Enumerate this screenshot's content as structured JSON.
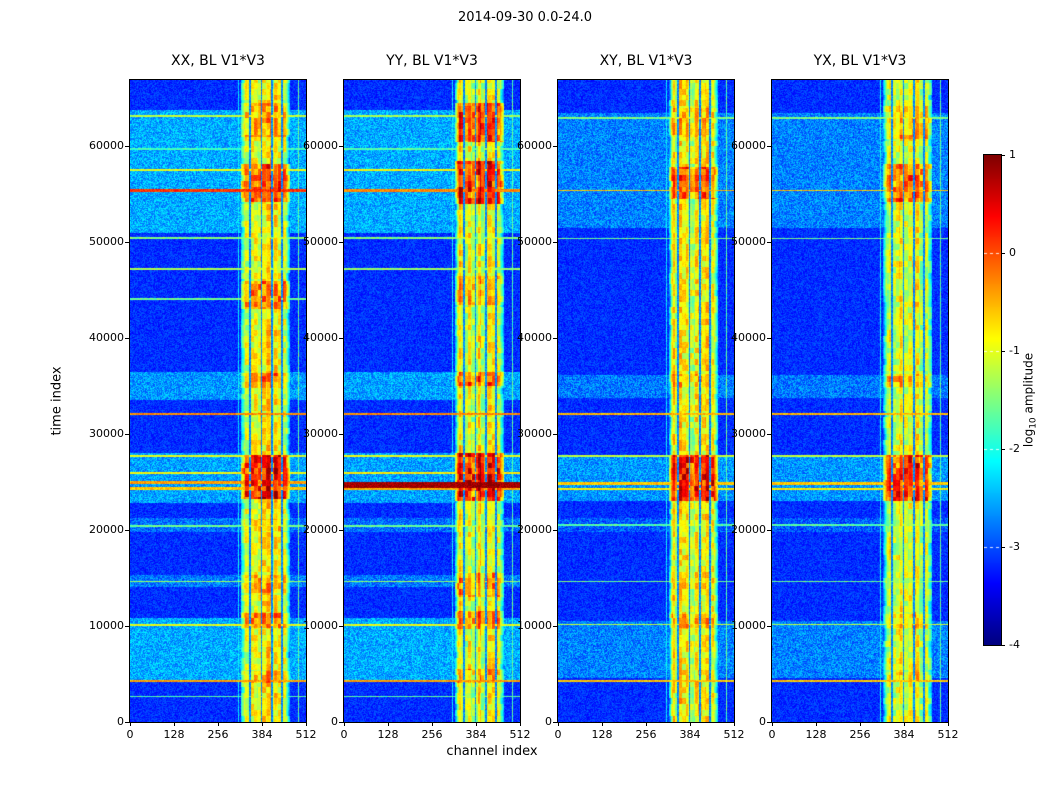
{
  "figure": {
    "title": "2014-09-30 0.0-24.0",
    "xlabel": "channel index",
    "ylabel": "time index",
    "colorbar_label_pre": "log",
    "colorbar_label_sub": "10",
    "colorbar_label_post": " amplitude"
  },
  "chart_data": {
    "type": "heatmap",
    "x_range": [
      0,
      512
    ],
    "y_range": [
      0,
      66875
    ],
    "x_ticks": [
      0,
      128,
      256,
      384,
      512
    ],
    "y_ticks": [
      0,
      10000,
      20000,
      30000,
      40000,
      50000,
      60000
    ],
    "colorbar": {
      "range": [
        -4,
        1
      ],
      "ticks": [
        1,
        0,
        -1,
        -2,
        -3,
        -4
      ],
      "colormap": "jet",
      "dashed_tick_values": [
        0,
        -1,
        -2,
        -3
      ]
    },
    "background": {
      "base": -3.15,
      "noise": 0.5
    },
    "band": {
      "start": 322,
      "end": 468,
      "base": -1.0,
      "taper": 14,
      "notches": [
        {
          "c": 349,
          "w": 3
        },
        {
          "c": 384,
          "w": 2
        },
        {
          "c": 414,
          "w": 3
        },
        {
          "c": 443,
          "w": 2
        }
      ]
    },
    "vlines": [
      {
        "c": 492,
        "w": 2,
        "v": -1.7
      },
      {
        "c": 316,
        "w": 1,
        "v": -2.2
      }
    ],
    "panels": [
      {
        "id": "xx",
        "title": "XX, BL V1*V3",
        "seed": 1,
        "stripes": [
          [
            51000,
            63800,
            0.55
          ],
          [
            33500,
            36500,
            0.45
          ],
          [
            22800,
            28000,
            0.5
          ],
          [
            4300,
            10800,
            0.55
          ],
          [
            14000,
            15300,
            0.3
          ],
          [
            19800,
            21200,
            0.25
          ]
        ],
        "clusters": [
          [
            23200,
            27800,
            1.6
          ],
          [
            54200,
            58200,
            1.2
          ],
          [
            43000,
            46000,
            0.85
          ],
          [
            34800,
            36400,
            0.7
          ],
          [
            9800,
            11300,
            0.8
          ],
          [
            13400,
            15300,
            0.5
          ],
          [
            61000,
            64500,
            0.6
          ],
          [
            4000,
            5300,
            0.5
          ],
          [
            19900,
            21100,
            0.4
          ]
        ],
        "hlines": [
          [
            63200,
            120,
            -1.2
          ],
          [
            59700,
            90,
            -1.8
          ],
          [
            57500,
            100,
            -1.0
          ],
          [
            55400,
            120,
            0.1
          ],
          [
            50400,
            100,
            -1.5
          ],
          [
            47200,
            90,
            -1.3
          ],
          [
            44100,
            80,
            -1.6
          ],
          [
            32100,
            110,
            -0.3
          ],
          [
            27700,
            90,
            -1.0
          ],
          [
            25900,
            100,
            -0.9
          ],
          [
            24900,
            150,
            -0.4
          ],
          [
            24300,
            120,
            -0.6
          ],
          [
            20400,
            90,
            -1.6
          ],
          [
            14600,
            80,
            -1.4
          ],
          [
            10100,
            90,
            -1.0
          ],
          [
            4200,
            100,
            -0.4
          ],
          [
            2600,
            80,
            -1.7
          ]
        ]
      },
      {
        "id": "yy",
        "title": "YY, BL V1*V3",
        "seed": 2,
        "stripes": [
          [
            51000,
            63800,
            0.55
          ],
          [
            33500,
            36500,
            0.5
          ],
          [
            22800,
            28000,
            0.5
          ],
          [
            4300,
            10800,
            0.55
          ],
          [
            14000,
            15300,
            0.3
          ],
          [
            19800,
            21200,
            0.25
          ]
        ],
        "clusters": [
          [
            23000,
            28000,
            1.7
          ],
          [
            54000,
            58500,
            1.5
          ],
          [
            60500,
            64500,
            1.3
          ],
          [
            43500,
            46500,
            0.6
          ],
          [
            35000,
            36500,
            1.0
          ],
          [
            9700,
            11500,
            0.9
          ],
          [
            13000,
            15500,
            0.7
          ],
          [
            4000,
            5500,
            0.7
          ]
        ],
        "hlines": [
          [
            63200,
            110,
            -1.3
          ],
          [
            59700,
            90,
            -1.7
          ],
          [
            57500,
            100,
            -0.9
          ],
          [
            55400,
            110,
            -0.3
          ],
          [
            50400,
            100,
            -1.5
          ],
          [
            47200,
            90,
            -1.4
          ],
          [
            32100,
            110,
            -0.3
          ],
          [
            27700,
            90,
            -1.0
          ],
          [
            25900,
            100,
            -0.8
          ],
          [
            24700,
            300,
            0.85
          ],
          [
            24300,
            120,
            -0.5
          ],
          [
            20400,
            90,
            -1.6
          ],
          [
            14600,
            80,
            -1.4
          ],
          [
            10100,
            90,
            -1.0
          ],
          [
            4200,
            100,
            -0.4
          ],
          [
            2600,
            80,
            -1.7
          ]
        ]
      },
      {
        "id": "xy",
        "title": "XY, BL V1*V3",
        "seed": 3,
        "stripes": [
          [
            51500,
            63500,
            0.35
          ],
          [
            33800,
            36200,
            0.3
          ],
          [
            23000,
            27800,
            0.45
          ],
          [
            4500,
            10500,
            0.35
          ],
          [
            19800,
            21200,
            0.15
          ]
        ],
        "clusters": [
          [
            23000,
            27800,
            1.5
          ],
          [
            54500,
            57800,
            1.0
          ],
          [
            9800,
            11200,
            0.5
          ],
          [
            34900,
            36300,
            0.45
          ],
          [
            61000,
            64000,
            0.35
          ],
          [
            13800,
            15000,
            0.3
          ]
        ],
        "hlines": [
          [
            63000,
            90,
            -1.5
          ],
          [
            55400,
            100,
            -0.6
          ],
          [
            50400,
            80,
            -1.6
          ],
          [
            32100,
            100,
            -0.5
          ],
          [
            27700,
            80,
            -1.2
          ],
          [
            24800,
            140,
            -0.6
          ],
          [
            24300,
            100,
            -0.8
          ],
          [
            20500,
            70,
            -1.7
          ],
          [
            14600,
            70,
            -1.6
          ],
          [
            10100,
            80,
            -1.2
          ],
          [
            4200,
            90,
            -0.6
          ]
        ]
      },
      {
        "id": "yx",
        "title": "YX, BL V1*V3",
        "seed": 4,
        "stripes": [
          [
            51500,
            63500,
            0.35
          ],
          [
            33800,
            36200,
            0.3
          ],
          [
            23000,
            27800,
            0.45
          ],
          [
            4500,
            10500,
            0.35
          ],
          [
            19800,
            21200,
            0.15
          ]
        ],
        "clusters": [
          [
            23000,
            27800,
            1.5
          ],
          [
            54200,
            58200,
            1.1
          ],
          [
            60800,
            64200,
            0.6
          ],
          [
            9800,
            11200,
            0.5
          ],
          [
            34900,
            36300,
            0.5
          ],
          [
            4100,
            5200,
            0.35
          ]
        ],
        "hlines": [
          [
            63000,
            90,
            -1.5
          ],
          [
            55400,
            100,
            -0.6
          ],
          [
            50400,
            80,
            -1.6
          ],
          [
            32100,
            100,
            -0.5
          ],
          [
            27700,
            80,
            -1.2
          ],
          [
            24800,
            140,
            -0.6
          ],
          [
            24300,
            100,
            -0.8
          ],
          [
            20500,
            70,
            -1.7
          ],
          [
            14600,
            70,
            -1.6
          ],
          [
            10100,
            80,
            -1.2
          ],
          [
            4200,
            90,
            -0.6
          ]
        ]
      }
    ]
  }
}
